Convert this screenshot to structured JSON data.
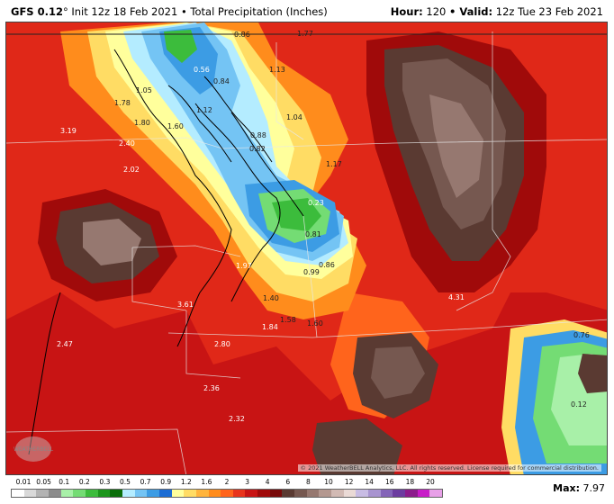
{
  "header": {
    "model": "GFS 0.12",
    "model_suffix": "° Init 12z 18 Feb 2021 • Total Precipitation (Inches)",
    "hour_label": "Hour:",
    "hour_value": "120",
    "valid_label": "• Valid:",
    "valid_value": "12z Tue 23 Feb 2021"
  },
  "map": {
    "copyright": "© 2021 WeatherBELL Analytics, LLC. All rights reserved. License required for commercial distribution.",
    "logo_text": "WEATHERBELL",
    "values": [
      "0.86",
      "1.77",
      "0.56",
      "1.13",
      "0.84",
      "1.05",
      "1.78",
      "1.12",
      "1.04",
      "3.19",
      "1.80",
      "1.60",
      "0.88",
      "2.40",
      "0.82",
      "1.17",
      "2.02",
      "0.23",
      "0.81",
      "0.86",
      "0.99",
      "1.97",
      "3.61",
      "1.40",
      "1.58",
      "1.60",
      "1.84",
      "4.31",
      "2.47",
      "2.80",
      "2.36",
      "2.32",
      "0.76",
      "0.12"
    ]
  },
  "legend": {
    "labels": [
      "0.01",
      "0.05",
      "0.1",
      "0.2",
      "0.3",
      "0.5",
      "0.7",
      "0.9",
      "1.2",
      "1.6",
      "2",
      "3",
      "4",
      "6",
      "8",
      "10",
      "12",
      "14",
      "16",
      "18",
      "20"
    ],
    "colors": [
      "#ffffff",
      "#d9d9d9",
      "#b3b3b3",
      "#8c8c8c",
      "#a8f0a8",
      "#74dc74",
      "#3cbc3c",
      "#1c961c",
      "#0a6e0a",
      "#b4ecff",
      "#74c4f4",
      "#3c9ce4",
      "#1c6cd4",
      "#ffff9c",
      "#ffdc64",
      "#ffb43c",
      "#ff8c1c",
      "#ff641c",
      "#e8341c",
      "#c81414",
      "#a00a0a",
      "#780a0a",
      "#5a3a32",
      "#765850",
      "#967870",
      "#b49890",
      "#d2bab4",
      "#eadad6",
      "#c8bce4",
      "#a894d0",
      "#8464b8",
      "#6c3ca0",
      "#8c1c8c",
      "#c81cc8",
      "#e8a0e8"
    ],
    "max_label": "Max:",
    "max_value": "7.97"
  }
}
